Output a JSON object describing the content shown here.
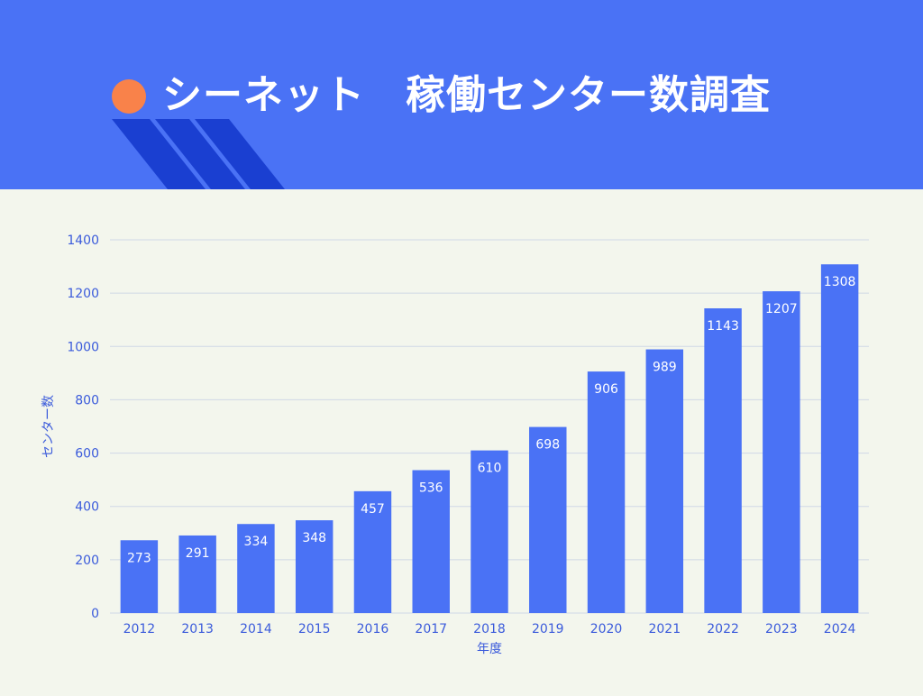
{
  "header": {
    "title": "シーネット　稼働センター数調査"
  },
  "colors": {
    "header_bg": "#4a72f5",
    "accent_dot": "#f9824a",
    "stripe": "#1a3fd1",
    "bar": "#4a72f5",
    "axis_text": "#3b5bdb",
    "grid": "#cfd8e6",
    "background": "#f3f6ed"
  },
  "chart_data": {
    "type": "bar",
    "categories": [
      "2012",
      "2013",
      "2014",
      "2015",
      "2016",
      "2017",
      "2018",
      "2019",
      "2020",
      "2021",
      "2022",
      "2023",
      "2024"
    ],
    "values": [
      273,
      291,
      334,
      348,
      457,
      536,
      610,
      698,
      906,
      989,
      1143,
      1207,
      1308
    ],
    "xlabel": "年度",
    "ylabel": "センター数",
    "ylim": [
      0,
      1400
    ],
    "yticks": [
      0,
      200,
      400,
      600,
      800,
      1000,
      1200,
      1400
    ],
    "grid": true,
    "data_labels": true
  }
}
